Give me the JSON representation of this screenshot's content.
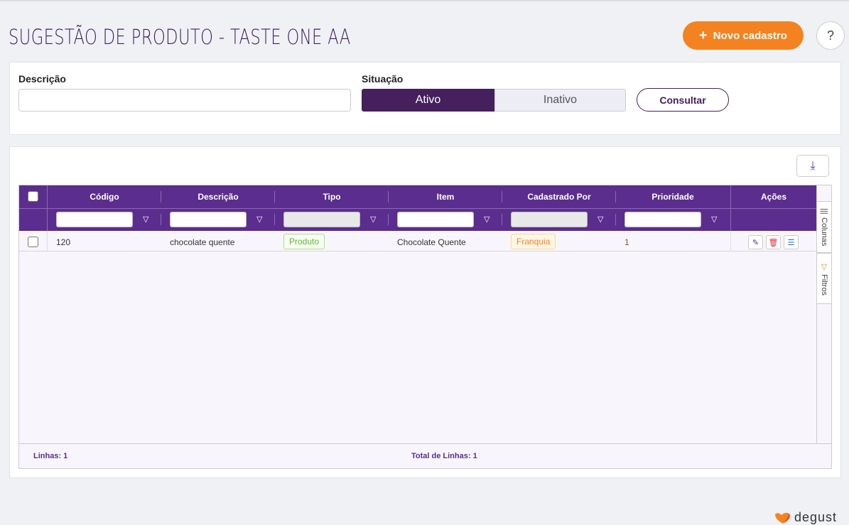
{
  "page": {
    "title": "SUGESTÃO DE PRODUTO - TASTE ONE AA",
    "new_button": "Novo cadastro",
    "help": "?"
  },
  "filters": {
    "descricao_label": "Descrição",
    "descricao_value": "",
    "situacao_label": "Situação",
    "options": [
      "Ativo",
      "Inativo"
    ],
    "selected": "Ativo",
    "consultar": "Consultar"
  },
  "grid": {
    "columns": [
      "Código",
      "Descrição",
      "Tipo",
      "Item",
      "Cadastrado Por",
      "Prioridade",
      "Ações"
    ],
    "rows": [
      {
        "codigo": "120",
        "descricao": "chocolate quente",
        "tipo": "Produto",
        "item": "Chocolate Quente",
        "cadastrado_por": "Franquia",
        "prioridade": "1"
      }
    ],
    "side_tabs": [
      "Colunas",
      "Filtros"
    ],
    "footer": {
      "linhas": "Linhas: 1",
      "total": "Total de Linhas: 1"
    }
  },
  "brand": {
    "logo_text": "degust"
  },
  "colors": {
    "primary": "#5b2d8e",
    "dark": "#45205c",
    "accent": "#f58220"
  }
}
